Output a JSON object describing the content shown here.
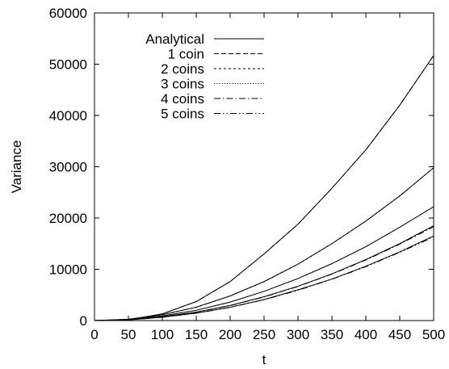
{
  "chart_data": {
    "type": "line",
    "xlabel": "t",
    "ylabel": "Variance",
    "xlim": [
      0,
      500
    ],
    "ylim": [
      0,
      60000
    ],
    "xticks": [
      0,
      50,
      100,
      150,
      200,
      250,
      300,
      350,
      400,
      450,
      500
    ],
    "yticks": [
      0,
      10000,
      20000,
      30000,
      40000,
      50000,
      60000
    ],
    "grid": false,
    "legend_position": "top-left",
    "x": [
      0,
      50,
      100,
      150,
      200,
      250,
      300,
      350,
      400,
      450,
      500
    ],
    "series": [
      {
        "name": "Analytical",
        "dash": "solid",
        "color": "#000000",
        "curves": [
          [
            0,
            150,
            1300,
            3700,
            7600,
            13000,
            18800,
            25800,
            33300,
            42000,
            51700
          ],
          [
            0,
            250,
            1150,
            2600,
            4800,
            7600,
            11000,
            15000,
            19400,
            24300,
            29800
          ],
          [
            0,
            200,
            900,
            2000,
            3600,
            5700,
            8200,
            11100,
            14400,
            18200,
            22200
          ],
          [
            0,
            150,
            750,
            1650,
            2950,
            4650,
            6700,
            9100,
            11900,
            15000,
            18500
          ],
          [
            0,
            120,
            650,
            1450,
            2600,
            4100,
            6000,
            8100,
            10600,
            13400,
            16500
          ]
        ]
      },
      {
        "name": "1 coin",
        "dash": "dashed",
        "color": "#000000",
        "values": [
          0,
          150,
          1300,
          3700,
          7600,
          13000,
          18800,
          25800,
          33300,
          42000,
          51700
        ]
      },
      {
        "name": "2 coins",
        "dash": "short-dashed",
        "color": "#000000",
        "values": [
          0,
          250,
          1150,
          2600,
          4800,
          7600,
          11000,
          15000,
          19400,
          24300,
          29800
        ]
      },
      {
        "name": "3 coins",
        "dash": "dotted",
        "color": "#000000",
        "values": [
          0,
          200,
          900,
          2000,
          3600,
          5700,
          8200,
          11100,
          14400,
          18200,
          22200
        ]
      },
      {
        "name": "4 coins",
        "dash": "dash-dot",
        "color": "#000000",
        "values": [
          0,
          150,
          730,
          1620,
          2900,
          4600,
          6650,
          9050,
          11800,
          14900,
          18300
        ]
      },
      {
        "name": "5 coins",
        "dash": "dash-dot-dot",
        "color": "#000000",
        "values": [
          0,
          120,
          640,
          1430,
          2570,
          4060,
          5900,
          8050,
          10500,
          13300,
          16300
        ]
      }
    ]
  }
}
